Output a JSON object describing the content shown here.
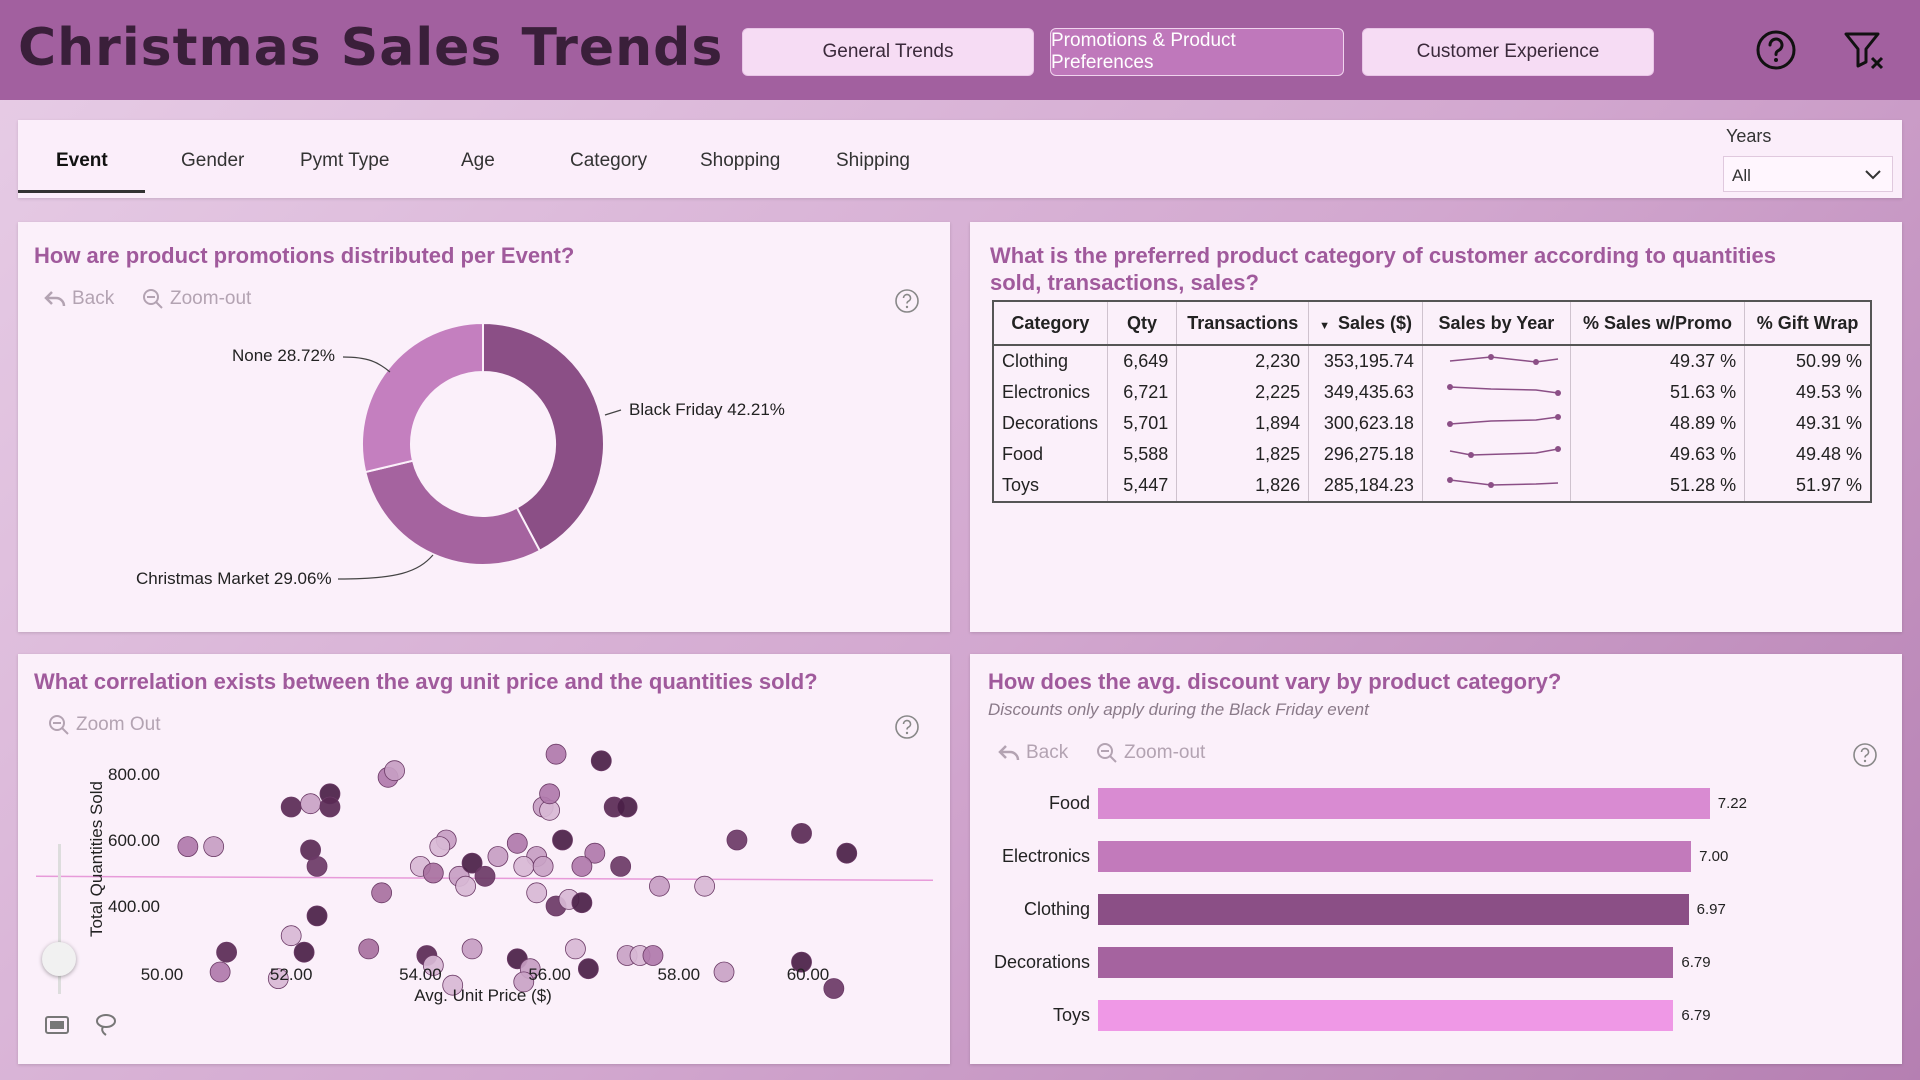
{
  "header": {
    "title": "Christmas Sales Trends",
    "nav": [
      {
        "label": "General Trends",
        "active": false
      },
      {
        "label": "Promotions & Product Preferences",
        "active": true
      },
      {
        "label": "Customer Experience",
        "active": false
      }
    ]
  },
  "filters": {
    "tabs": [
      "Event",
      "Gender",
      "Pymt Type",
      "Age",
      "Category",
      "Shopping",
      "Shipping"
    ],
    "active_tab": "Event",
    "years_label": "Years",
    "years_value": "All"
  },
  "donut_panel": {
    "title": "How are product promotions distributed per Event?",
    "back_label": "Back",
    "zoom_label": "Zoom-out"
  },
  "table_panel": {
    "title_line1": "What is the preferred product category of customer according to quantities",
    "title_line2": "sold, transactions, sales?",
    "columns": [
      "Category",
      "Qty",
      "Transactions",
      "Sales ($)",
      "Sales by Year",
      "% Sales w/Promo",
      "% Gift Wrap"
    ],
    "rows": [
      {
        "category": "Clothing",
        "qty": "6,649",
        "transactions": "2,230",
        "sales": "353,195.74",
        "promo": "49.37 %",
        "gift": "50.99 %"
      },
      {
        "category": "Electronics",
        "qty": "6,721",
        "transactions": "2,225",
        "sales": "349,435.63",
        "promo": "51.63 %",
        "gift": "49.53 %"
      },
      {
        "category": "Decorations",
        "qty": "5,701",
        "transactions": "1,894",
        "sales": "300,623.18",
        "promo": "48.89 %",
        "gift": "49.31 %"
      },
      {
        "category": "Food",
        "qty": "5,588",
        "transactions": "1,825",
        "sales": "296,275.18",
        "promo": "49.63 %",
        "gift": "49.48 %"
      },
      {
        "category": "Toys",
        "qty": "5,447",
        "transactions": "1,826",
        "sales": "285,184.23",
        "promo": "51.28 %",
        "gift": "51.97 %"
      }
    ]
  },
  "scatter_panel": {
    "title": "What correlation exists between the avg unit price and the quantities sold?",
    "zoom_label": "Zoom Out"
  },
  "bar_panel": {
    "title": "How does the avg. discount vary by product category?",
    "subtitle": "Discounts only apply during the Black Friday event",
    "back_label": "Back",
    "zoom_label": "Zoom-out"
  },
  "chart_data": [
    {
      "type": "pie",
      "labels": [
        "Black Friday",
        "Christmas Market",
        "None"
      ],
      "values": [
        42.21,
        29.06,
        28.72
      ],
      "data_labels": [
        "Black Friday 42.21%",
        "Christmas Market 29.06%",
        "None 28.72%"
      ],
      "colors": [
        "#8b4f86",
        "#a5639f",
        "#c47fbf"
      ]
    },
    {
      "type": "scatter",
      "xlabel": "Avg. Unit Price ($)",
      "ylabel": "Total Quantities Sold",
      "xlim": [
        49.0,
        62.0
      ],
      "ylim": [
        250,
        900
      ],
      "x_ticks": [
        "50.00",
        "52.00",
        "54.00",
        "56.00",
        "58.00",
        "60.00"
      ],
      "y_ticks": [
        "800.00",
        "600.00",
        "400.00"
      ],
      "trend_y": 490,
      "points": [
        {
          "x": 50.4,
          "y": 580,
          "c": "#b07aab"
        },
        {
          "x": 50.8,
          "y": 580,
          "c": "#c79ec3"
        },
        {
          "x": 52.0,
          "y": 700,
          "c": "#5a2a55"
        },
        {
          "x": 52.3,
          "y": 710,
          "c": "#c9a3c6"
        },
        {
          "x": 52.6,
          "y": 740,
          "c": "#4a1f46"
        },
        {
          "x": 52.6,
          "y": 700,
          "c": "#5a2a55"
        },
        {
          "x": 52.3,
          "y": 570,
          "c": "#5a2a55"
        },
        {
          "x": 52.4,
          "y": 520,
          "c": "#6b3a66"
        },
        {
          "x": 53.5,
          "y": 790,
          "c": "#b07aab"
        },
        {
          "x": 53.6,
          "y": 810,
          "c": "#c79ec3"
        },
        {
          "x": 53.4,
          "y": 440,
          "c": "#a8719f"
        },
        {
          "x": 52.4,
          "y": 370,
          "c": "#4a1f46"
        },
        {
          "x": 52.0,
          "y": 310,
          "c": "#d8b8d5"
        },
        {
          "x": 51.0,
          "y": 260,
          "c": "#5a2a55"
        },
        {
          "x": 50.9,
          "y": 200,
          "c": "#b07aab"
        },
        {
          "x": 52.2,
          "y": 260,
          "c": "#4a1f46"
        },
        {
          "x": 51.8,
          "y": 180,
          "c": "#d8b8d5"
        },
        {
          "x": 53.2,
          "y": 270,
          "c": "#a8719f"
        },
        {
          "x": 54.0,
          "y": 520,
          "c": "#d8b8d5"
        },
        {
          "x": 54.2,
          "y": 500,
          "c": "#a8719f"
        },
        {
          "x": 54.4,
          "y": 600,
          "c": "#c79ec3"
        },
        {
          "x": 54.3,
          "y": 580,
          "c": "#d8b8d5"
        },
        {
          "x": 54.6,
          "y": 490,
          "c": "#c79ec3"
        },
        {
          "x": 54.7,
          "y": 460,
          "c": "#d8b8d5"
        },
        {
          "x": 54.8,
          "y": 530,
          "c": "#4a1f46"
        },
        {
          "x": 55.0,
          "y": 490,
          "c": "#6b3a66"
        },
        {
          "x": 55.2,
          "y": 550,
          "c": "#c79ec3"
        },
        {
          "x": 55.5,
          "y": 590,
          "c": "#b07aab"
        },
        {
          "x": 55.8,
          "y": 550,
          "c": "#c79ec3"
        },
        {
          "x": 55.6,
          "y": 520,
          "c": "#d8b8d5"
        },
        {
          "x": 55.9,
          "y": 520,
          "c": "#c9a3c6"
        },
        {
          "x": 55.9,
          "y": 700,
          "c": "#c79ec3"
        },
        {
          "x": 56.0,
          "y": 690,
          "c": "#d8b8d5"
        },
        {
          "x": 56.0,
          "y": 740,
          "c": "#b07aab"
        },
        {
          "x": 56.1,
          "y": 860,
          "c": "#b07aab"
        },
        {
          "x": 56.2,
          "y": 600,
          "c": "#4a1f46"
        },
        {
          "x": 56.8,
          "y": 840,
          "c": "#4a1f46"
        },
        {
          "x": 56.7,
          "y": 560,
          "c": "#b07aab"
        },
        {
          "x": 56.5,
          "y": 520,
          "c": "#b07aab"
        },
        {
          "x": 57.0,
          "y": 700,
          "c": "#5a2a55"
        },
        {
          "x": 57.2,
          "y": 700,
          "c": "#4a1f46"
        },
        {
          "x": 57.1,
          "y": 520,
          "c": "#6b3a66"
        },
        {
          "x": 57.7,
          "y": 460,
          "c": "#c79ec3"
        },
        {
          "x": 58.4,
          "y": 460,
          "c": "#d8b8d5"
        },
        {
          "x": 58.9,
          "y": 600,
          "c": "#6b3a66"
        },
        {
          "x": 59.9,
          "y": 620,
          "c": "#5a2a55"
        },
        {
          "x": 60.6,
          "y": 560,
          "c": "#4a1f46"
        },
        {
          "x": 54.8,
          "y": 270,
          "c": "#c79ec3"
        },
        {
          "x": 55.5,
          "y": 240,
          "c": "#4a1f46"
        },
        {
          "x": 55.7,
          "y": 210,
          "c": "#c79ec3"
        },
        {
          "x": 56.4,
          "y": 270,
          "c": "#d8b8d5"
        },
        {
          "x": 55.8,
          "y": 440,
          "c": "#d8b8d5"
        },
        {
          "x": 56.1,
          "y": 400,
          "c": "#6b3a66"
        },
        {
          "x": 56.3,
          "y": 420,
          "c": "#d8b8d5"
        },
        {
          "x": 56.5,
          "y": 410,
          "c": "#4a1f46"
        },
        {
          "x": 54.1,
          "y": 250,
          "c": "#5a2a55"
        },
        {
          "x": 54.2,
          "y": 220,
          "c": "#d8b8d5"
        },
        {
          "x": 56.6,
          "y": 210,
          "c": "#4a1f46"
        },
        {
          "x": 57.2,
          "y": 250,
          "c": "#c9a3c6"
        },
        {
          "x": 57.4,
          "y": 250,
          "c": "#d8b8d5"
        },
        {
          "x": 57.6,
          "y": 250,
          "c": "#b07aab"
        },
        {
          "x": 58.7,
          "y": 200,
          "c": "#c9a3c6"
        },
        {
          "x": 59.9,
          "y": 230,
          "c": "#4a1f46"
        },
        {
          "x": 60.4,
          "y": 150,
          "c": "#6b3a66"
        },
        {
          "x": 54.5,
          "y": 160,
          "c": "#d8b8d5"
        },
        {
          "x": 55.6,
          "y": 170,
          "c": "#c9a3c6"
        }
      ]
    },
    {
      "type": "bar",
      "orientation": "horizontal",
      "categories": [
        "Food",
        "Electronics",
        "Clothing",
        "Decorations",
        "Toys"
      ],
      "values": [
        7.22,
        7.0,
        6.97,
        6.79,
        6.79
      ],
      "value_labels": [
        "7.22",
        "7.00",
        "6.97",
        "6.79",
        "6.79"
      ],
      "xlim": [
        0,
        7.6
      ],
      "colors": [
        "#d98bd2",
        "#c27abb",
        "#8b4f86",
        "#a5639f",
        "#ef98e6"
      ]
    }
  ]
}
